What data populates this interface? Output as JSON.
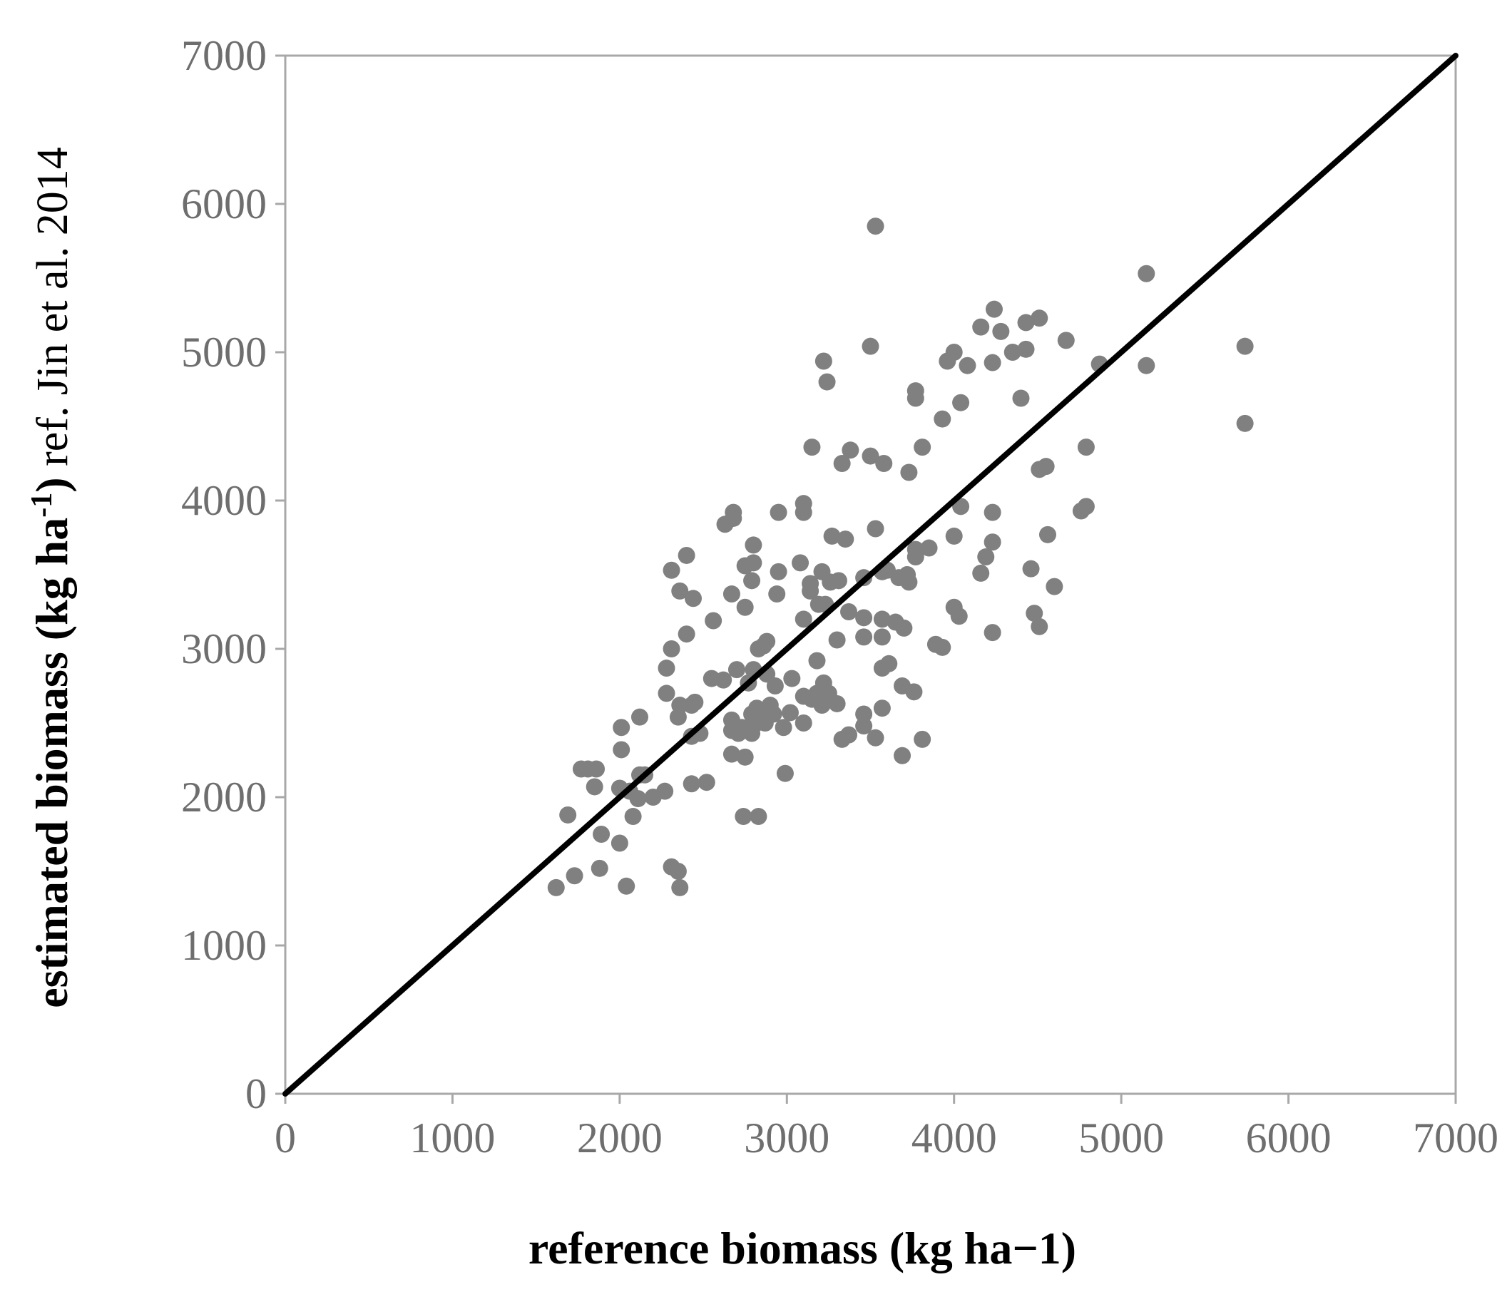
{
  "chart_data": {
    "type": "scatter",
    "title": "",
    "xlabel": "reference biomass (kg ha−1)",
    "ylabel_bold_prefix": "estimated biomass (kg ha",
    "ylabel_bold_superscript": "-1",
    "ylabel_bold_close": ")",
    "ylabel_regular_suffix": " ref. Jin et al. 2014",
    "xlim": [
      0,
      7000
    ],
    "ylim": [
      0,
      7000
    ],
    "x_ticks": [
      "0",
      "1000",
      "2000",
      "3000",
      "4000",
      "5000",
      "6000",
      "7000"
    ],
    "y_ticks": [
      "0",
      "1000",
      "2000",
      "3000",
      "4000",
      "5000",
      "6000",
      "7000"
    ],
    "grid": false,
    "legend": "none",
    "reference_line": {
      "type": "1:1",
      "from": [
        0,
        0
      ],
      "to": [
        7000,
        7000
      ],
      "color": "#000000"
    },
    "series": [
      {
        "color": "#808080",
        "points": [
          [
            1620,
            1390
          ],
          [
            1690,
            1880
          ],
          [
            1730,
            1470
          ],
          [
            1770,
            2190
          ],
          [
            1810,
            2190
          ],
          [
            1850,
            2070
          ],
          [
            1860,
            2190
          ],
          [
            1880,
            1520
          ],
          [
            1890,
            1750
          ],
          [
            2000,
            1690
          ],
          [
            2000,
            2060
          ],
          [
            2010,
            2320
          ],
          [
            2010,
            2470
          ],
          [
            2040,
            1400
          ],
          [
            2060,
            2040
          ],
          [
            2080,
            1870
          ],
          [
            2110,
            1990
          ],
          [
            2120,
            2150
          ],
          [
            2120,
            2540
          ],
          [
            2150,
            2150
          ],
          [
            2200,
            2000
          ],
          [
            2270,
            2040
          ],
          [
            2280,
            2700
          ],
          [
            2280,
            2870
          ],
          [
            2310,
            1530
          ],
          [
            2310,
            3000
          ],
          [
            2310,
            3530
          ],
          [
            2350,
            1500
          ],
          [
            2350,
            2540
          ],
          [
            2360,
            1390
          ],
          [
            2360,
            2620
          ],
          [
            2360,
            3390
          ],
          [
            2400,
            3100
          ],
          [
            2400,
            3630
          ],
          [
            2430,
            2090
          ],
          [
            2430,
            2410
          ],
          [
            2430,
            2620
          ],
          [
            2440,
            3340
          ],
          [
            2450,
            2640
          ],
          [
            2480,
            2430
          ],
          [
            2520,
            2100
          ],
          [
            2550,
            2800
          ],
          [
            2560,
            3190
          ],
          [
            2620,
            2790
          ],
          [
            2630,
            3840
          ],
          [
            2670,
            2290
          ],
          [
            2670,
            2450
          ],
          [
            2670,
            2520
          ],
          [
            2670,
            3370
          ],
          [
            2680,
            3880
          ],
          [
            2680,
            3920
          ],
          [
            2700,
            2860
          ],
          [
            2710,
            2430
          ],
          [
            2730,
            2470
          ],
          [
            2740,
            1870
          ],
          [
            2750,
            2270
          ],
          [
            2750,
            3280
          ],
          [
            2750,
            3560
          ],
          [
            2770,
            2770
          ],
          [
            2790,
            2430
          ],
          [
            2790,
            2560
          ],
          [
            2790,
            3460
          ],
          [
            2800,
            2860
          ],
          [
            2800,
            3580
          ],
          [
            2800,
            3700
          ],
          [
            2820,
            2500
          ],
          [
            2820,
            2600
          ],
          [
            2830,
            1870
          ],
          [
            2830,
            3000
          ],
          [
            2850,
            2540
          ],
          [
            2860,
            3020
          ],
          [
            2870,
            2500
          ],
          [
            2880,
            2830
          ],
          [
            2880,
            3050
          ],
          [
            2900,
            2620
          ],
          [
            2920,
            2560
          ],
          [
            2930,
            2750
          ],
          [
            2940,
            3370
          ],
          [
            2950,
            3520
          ],
          [
            2950,
            3920
          ],
          [
            2980,
            2470
          ],
          [
            2990,
            2160
          ],
          [
            3020,
            2570
          ],
          [
            3030,
            2800
          ],
          [
            3080,
            3580
          ],
          [
            3100,
            2500
          ],
          [
            3100,
            2680
          ],
          [
            3100,
            3200
          ],
          [
            3100,
            3920
          ],
          [
            3100,
            3980
          ],
          [
            3140,
            3390
          ],
          [
            3140,
            3440
          ],
          [
            3150,
            2660
          ],
          [
            3150,
            4360
          ],
          [
            3180,
            2700
          ],
          [
            3180,
            2920
          ],
          [
            3190,
            3300
          ],
          [
            3210,
            2620
          ],
          [
            3210,
            3520
          ],
          [
            3220,
            2770
          ],
          [
            3220,
            4940
          ],
          [
            3230,
            3300
          ],
          [
            3240,
            4800
          ],
          [
            3250,
            2700
          ],
          [
            3260,
            3450
          ],
          [
            3270,
            3760
          ],
          [
            3300,
            2630
          ],
          [
            3300,
            3060
          ],
          [
            3310,
            3460
          ],
          [
            3330,
            2390
          ],
          [
            3330,
            4250
          ],
          [
            3350,
            3740
          ],
          [
            3370,
            2420
          ],
          [
            3370,
            3250
          ],
          [
            3380,
            4340
          ],
          [
            3460,
            2480
          ],
          [
            3460,
            2560
          ],
          [
            3460,
            3080
          ],
          [
            3460,
            3210
          ],
          [
            3460,
            3480
          ],
          [
            3500,
            4300
          ],
          [
            3500,
            5040
          ],
          [
            3530,
            2400
          ],
          [
            3530,
            3810
          ],
          [
            3530,
            5850
          ],
          [
            3570,
            2600
          ],
          [
            3570,
            2870
          ],
          [
            3570,
            3080
          ],
          [
            3570,
            3200
          ],
          [
            3570,
            3520
          ],
          [
            3580,
            4250
          ],
          [
            3600,
            3530
          ],
          [
            3610,
            2900
          ],
          [
            3650,
            3180
          ],
          [
            3670,
            3480
          ],
          [
            3690,
            2280
          ],
          [
            3690,
            2750
          ],
          [
            3700,
            3140
          ],
          [
            3720,
            3500
          ],
          [
            3730,
            3450
          ],
          [
            3730,
            4190
          ],
          [
            3760,
            2710
          ],
          [
            3770,
            3620
          ],
          [
            3770,
            3670
          ],
          [
            3770,
            4690
          ],
          [
            3770,
            4740
          ],
          [
            3810,
            2390
          ],
          [
            3810,
            4360
          ],
          [
            3850,
            3680
          ],
          [
            3890,
            3030
          ],
          [
            3930,
            3010
          ],
          [
            3930,
            4550
          ],
          [
            3960,
            4940
          ],
          [
            4000,
            3280
          ],
          [
            4000,
            3760
          ],
          [
            4000,
            5000
          ],
          [
            4030,
            3220
          ],
          [
            4040,
            3960
          ],
          [
            4040,
            4660
          ],
          [
            4080,
            4910
          ],
          [
            4160,
            3510
          ],
          [
            4160,
            5170
          ],
          [
            4190,
            3620
          ],
          [
            4230,
            3110
          ],
          [
            4230,
            3720
          ],
          [
            4230,
            3920
          ],
          [
            4230,
            4930
          ],
          [
            4240,
            5290
          ],
          [
            4280,
            5140
          ],
          [
            4350,
            5000
          ],
          [
            4400,
            4690
          ],
          [
            4430,
            5200
          ],
          [
            4430,
            5020
          ],
          [
            4460,
            3540
          ],
          [
            4480,
            3240
          ],
          [
            4510,
            5230
          ],
          [
            4510,
            3150
          ],
          [
            4510,
            4210
          ],
          [
            4550,
            4230
          ],
          [
            4560,
            3770
          ],
          [
            4600,
            3420
          ],
          [
            4670,
            5080
          ],
          [
            4760,
            3930
          ],
          [
            4790,
            3960
          ],
          [
            4790,
            4360
          ],
          [
            4870,
            4920
          ],
          [
            5150,
            4910
          ],
          [
            5150,
            5530
          ],
          [
            5740,
            4520
          ],
          [
            5740,
            5040
          ]
        ]
      }
    ]
  }
}
